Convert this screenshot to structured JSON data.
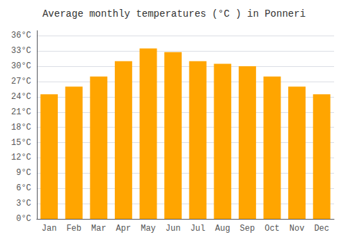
{
  "chart_data": {
    "type": "bar",
    "title": "Average monthly temperatures (°C ) in Ponneri",
    "categories": [
      "Jan",
      "Feb",
      "Mar",
      "Apr",
      "May",
      "Jun",
      "Jul",
      "Aug",
      "Sep",
      "Oct",
      "Nov",
      "Dec"
    ],
    "values": [
      24.5,
      26.0,
      28.0,
      31.0,
      33.5,
      32.8,
      31.0,
      30.5,
      30.0,
      28.0,
      26.0,
      24.5
    ],
    "color": "#FFA500",
    "ylim": [
      0,
      37
    ],
    "yticks": [
      {
        "value": 0,
        "label": "0°C"
      },
      {
        "value": 3,
        "label": "3°C"
      },
      {
        "value": 6,
        "label": "6°C"
      },
      {
        "value": 9,
        "label": "9°C"
      },
      {
        "value": 12,
        "label": "12°C"
      },
      {
        "value": 15,
        "label": "15°C"
      },
      {
        "value": 18,
        "label": "18°C"
      },
      {
        "value": 21,
        "label": "21°C"
      },
      {
        "value": 24,
        "label": "24°C"
      },
      {
        "value": 27,
        "label": "27°C"
      },
      {
        "value": 30,
        "label": "30°C"
      },
      {
        "value": 33,
        "label": "33°C"
      },
      {
        "value": 36,
        "label": "36°C"
      }
    ],
    "grid": true
  }
}
